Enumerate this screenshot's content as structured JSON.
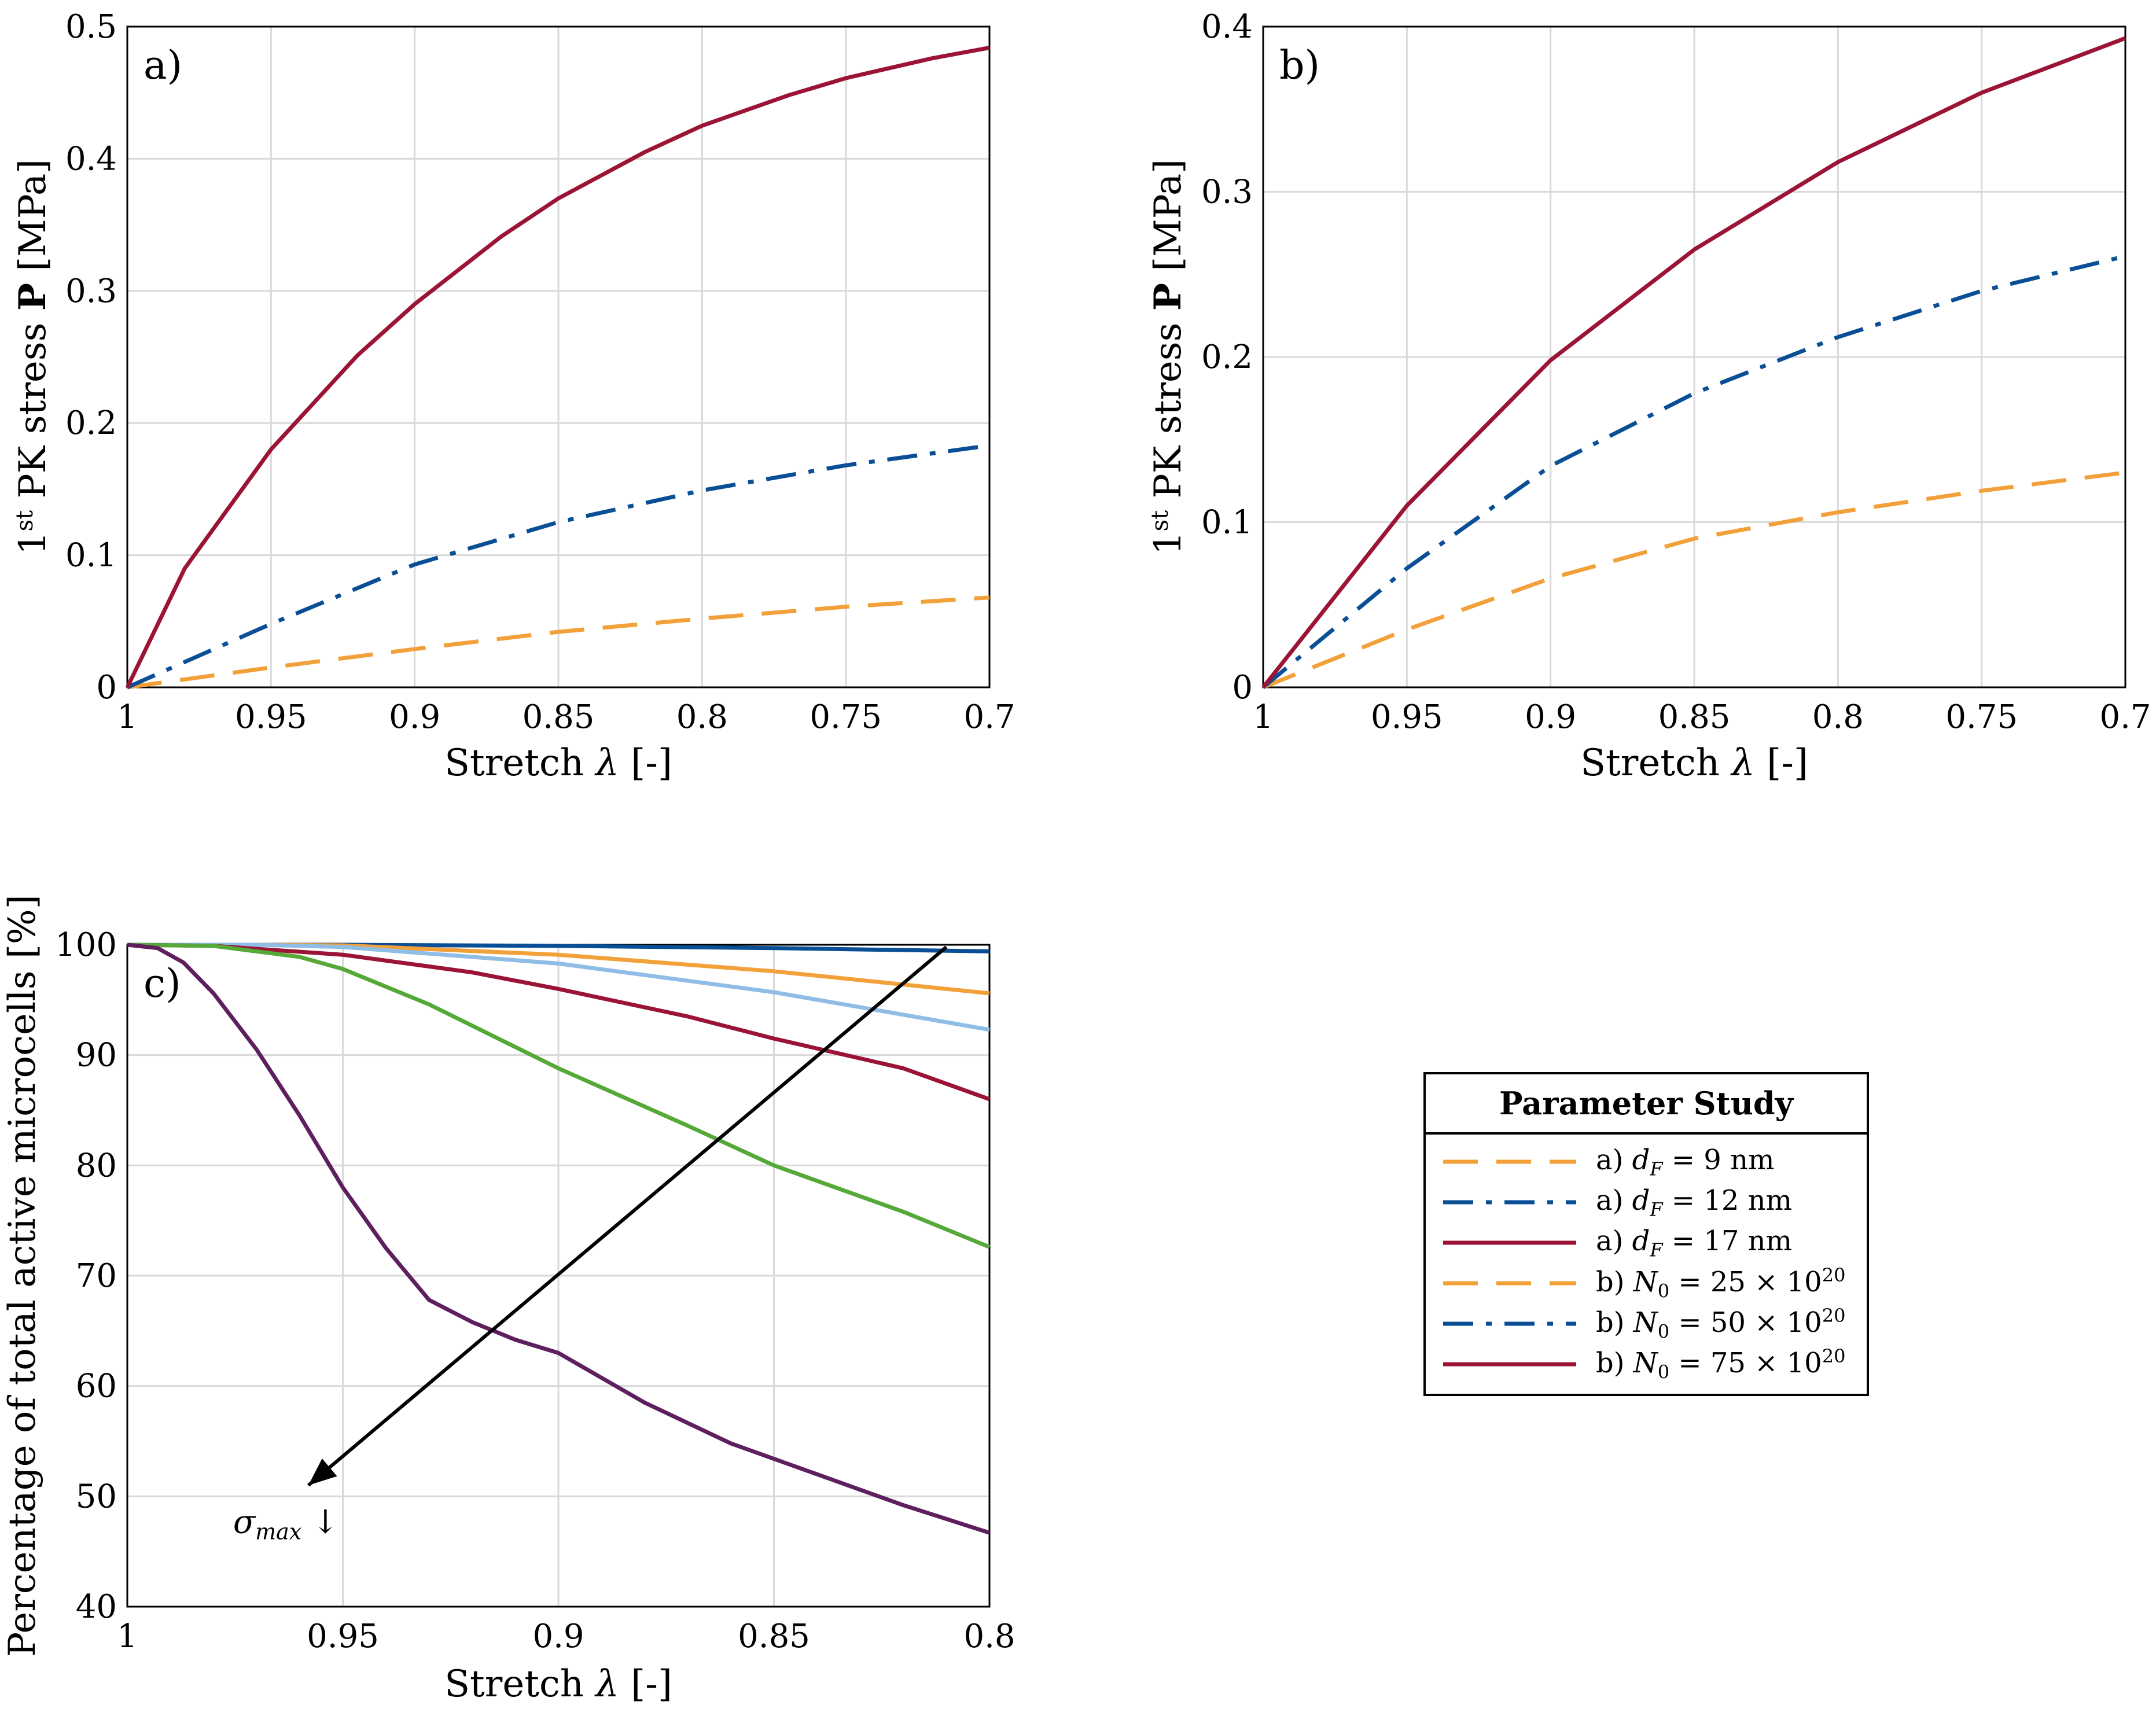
{
  "colors": {
    "orange": "#f2a13a",
    "blue": "#0a4f96",
    "crimson": "#9b1436",
    "lightblue": "#8fbde6",
    "green": "#56a838",
    "purple": "#5e1f5e"
  },
  "chart_data": [
    {
      "panel": "a)",
      "type": "line",
      "xlabel": "Stretch λ [-]",
      "ylabel": "1st PK stress P [MPa]",
      "xlim": [
        1,
        0.7
      ],
      "ylim": [
        0,
        0.5
      ],
      "x_reversed": true,
      "xticks": [
        "1",
        "0.95",
        "0.9",
        "0.85",
        "0.8",
        "0.75",
        "0.7"
      ],
      "yticks": [
        "0",
        "0.1",
        "0.2",
        "0.3",
        "0.4",
        "0.5"
      ],
      "grid": true,
      "series": [
        {
          "name": "a) dF = 9 nm",
          "color": "orange",
          "style": "dashed",
          "x": [
            1,
            0.95,
            0.9,
            0.85,
            0.8,
            0.75,
            0.7
          ],
          "y": [
            0,
            0.015,
            0.029,
            0.042,
            0.052,
            0.061,
            0.068
          ]
        },
        {
          "name": "a) dF = 12 nm",
          "color": "blue",
          "style": "dashdot",
          "x": [
            1,
            0.95,
            0.9,
            0.85,
            0.8,
            0.75,
            0.7
          ],
          "y": [
            0,
            0.048,
            0.093,
            0.125,
            0.149,
            0.168,
            0.183
          ]
        },
        {
          "name": "a) dF = 17 nm",
          "color": "crimson",
          "style": "solid",
          "x": [
            1,
            0.98,
            0.95,
            0.92,
            0.9,
            0.87,
            0.85,
            0.82,
            0.8,
            0.77,
            0.75,
            0.72,
            0.7
          ],
          "y": [
            0,
            0.09,
            0.18,
            0.251,
            0.29,
            0.341,
            0.37,
            0.405,
            0.425,
            0.448,
            0.461,
            0.476,
            0.484
          ]
        }
      ]
    },
    {
      "panel": "b)",
      "type": "line",
      "xlabel": "Stretch λ [-]",
      "ylabel": "1st PK stress P [MPa]",
      "xlim": [
        1,
        0.7
      ],
      "ylim": [
        0,
        0.4
      ],
      "x_reversed": true,
      "xticks": [
        "1",
        "0.95",
        "0.9",
        "0.85",
        "0.8",
        "0.75",
        "0.7"
      ],
      "yticks": [
        "0",
        "0.1",
        "0.2",
        "0.3",
        "0.4"
      ],
      "grid": true,
      "series": [
        {
          "name": "b) N0 = 25 × 10^20",
          "color": "orange",
          "style": "dashed",
          "x": [
            1,
            0.95,
            0.9,
            0.85,
            0.8,
            0.75,
            0.7
          ],
          "y": [
            0,
            0.035,
            0.066,
            0.09,
            0.106,
            0.119,
            0.13
          ]
        },
        {
          "name": "b) N0 = 50 × 10^20",
          "color": "blue",
          "style": "dashdot",
          "x": [
            1,
            0.95,
            0.9,
            0.85,
            0.8,
            0.75,
            0.7
          ],
          "y": [
            0,
            0.072,
            0.134,
            0.178,
            0.212,
            0.24,
            0.261
          ]
        },
        {
          "name": "b) N0 = 75 × 10^20",
          "color": "crimson",
          "style": "solid",
          "x": [
            1,
            0.95,
            0.9,
            0.85,
            0.8,
            0.75,
            0.7
          ],
          "y": [
            0,
            0.11,
            0.198,
            0.265,
            0.318,
            0.36,
            0.393
          ]
        }
      ]
    },
    {
      "panel": "c)",
      "type": "line",
      "xlabel": "Stretch λ [-]",
      "ylabel": "Percentage of total active microcells [%]",
      "xlim": [
        1,
        0.8
      ],
      "ylim": [
        40,
        100
      ],
      "x_reversed": true,
      "xticks": [
        "1",
        "0.95",
        "0.9",
        "0.85",
        "0.8"
      ],
      "yticks": [
        "40",
        "50",
        "60",
        "70",
        "80",
        "90",
        "100"
      ],
      "grid": true,
      "annotation": {
        "text": "σmax ↓",
        "arrow_from": [
          0.81,
          99.8
        ],
        "arrow_to": [
          0.958,
          51
        ]
      },
      "series": [
        {
          "color": "blue",
          "style": "solid",
          "x": [
            1,
            0.95,
            0.9,
            0.85,
            0.8
          ],
          "y": [
            100,
            100,
            99.9,
            99.7,
            99.4
          ]
        },
        {
          "color": "orange",
          "style": "solid",
          "x": [
            1,
            0.97,
            0.95,
            0.9,
            0.85,
            0.8
          ],
          "y": [
            100,
            100,
            99.95,
            99.1,
            97.6,
            95.6
          ]
        },
        {
          "color": "lightblue",
          "style": "solid",
          "x": [
            1,
            0.97,
            0.95,
            0.9,
            0.85,
            0.8
          ],
          "y": [
            100,
            100,
            99.8,
            98.3,
            95.7,
            92.3
          ]
        },
        {
          "color": "crimson",
          "style": "solid",
          "x": [
            1,
            0.98,
            0.95,
            0.92,
            0.9,
            0.87,
            0.85,
            0.82,
            0.8
          ],
          "y": [
            100,
            99.9,
            99.1,
            97.5,
            96,
            93.5,
            91.5,
            88.8,
            86
          ]
        },
        {
          "color": "green",
          "style": "solid",
          "x": [
            1,
            0.98,
            0.96,
            0.95,
            0.93,
            0.9,
            0.87,
            0.85,
            0.82,
            0.8
          ],
          "y": [
            100,
            99.9,
            98.9,
            97.8,
            94.6,
            88.8,
            83.6,
            80,
            75.8,
            72.6
          ]
        },
        {
          "color": "purple",
          "style": "solid",
          "x": [
            1,
            0.993,
            0.987,
            0.98,
            0.97,
            0.96,
            0.95,
            0.94,
            0.93,
            0.92,
            0.91,
            0.9,
            0.88,
            0.86,
            0.84,
            0.82,
            0.8
          ],
          "y": [
            100,
            99.7,
            98.4,
            95.6,
            90.5,
            84.5,
            78,
            72.5,
            67.8,
            65.8,
            64.2,
            63,
            58.5,
            54.8,
            52,
            49.2,
            46.7
          ]
        }
      ]
    }
  ],
  "legend": {
    "title": "Parameter Study",
    "items": [
      {
        "label": "a) dF = 9 nm",
        "color": "orange",
        "style": "dashed"
      },
      {
        "label": "a) dF = 12 nm",
        "color": "blue",
        "style": "dashdot"
      },
      {
        "label": "a) dF = 17 nm",
        "color": "crimson",
        "style": "solid"
      },
      {
        "label": "b) N0 = 25 × 10^20",
        "color": "orange",
        "style": "dashed"
      },
      {
        "label": "b) N0 = 50 × 10^20",
        "color": "blue",
        "style": "dashdot"
      },
      {
        "label": "b) N0 = 75 × 10^20",
        "color": "crimson",
        "style": "solid"
      }
    ]
  }
}
